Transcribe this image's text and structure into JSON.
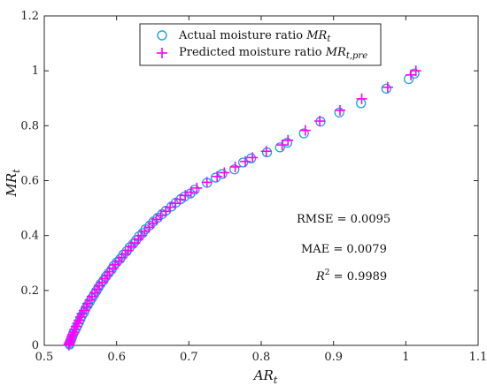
{
  "chart_data": {
    "type": "scatter",
    "xlabel": "AR_t",
    "ylabel": "MR_t",
    "xlim": [
      0.5,
      1.1
    ],
    "ylim": [
      0,
      1.2
    ],
    "xticks": [
      "0.5",
      "0.6",
      "0.7",
      "0.8",
      "0.9",
      "1",
      "1.1"
    ],
    "yticks": [
      "0",
      "0.2",
      "0.4",
      "0.6",
      "0.8",
      "1",
      "1.2"
    ],
    "xtick_values": [
      0.5,
      0.6,
      0.7,
      0.8,
      0.9,
      1.0,
      1.1
    ],
    "ytick_values": [
      0,
      0.2,
      0.4,
      0.6,
      0.8,
      1.0,
      1.2
    ],
    "grid": false,
    "legend": {
      "placement": "top-center",
      "entries": [
        {
          "label": "Actual moisture ratio MR_t",
          "marker": "circle",
          "color": "#1aa3e0"
        },
        {
          "label": "Predicted moisture ratio MR_t,pre",
          "marker": "plus",
          "color": "#ff00ff"
        }
      ]
    },
    "annotations": [
      "RMSE = 0.0095",
      "MAE = 0.0079",
      "R^2 = 0.9989"
    ],
    "series": [
      {
        "name": "Actual moisture ratio MR_t",
        "marker": "circle",
        "color": "#1aa3e0",
        "x": [
          1.012,
          1.004,
          0.973,
          0.938,
          0.908,
          0.882,
          0.859,
          0.836,
          0.826,
          0.808,
          0.786,
          0.775,
          0.763,
          0.746,
          0.737,
          0.725,
          0.708,
          0.702,
          0.694,
          0.689,
          0.682,
          0.676,
          0.668,
          0.663,
          0.657,
          0.651,
          0.646,
          0.64,
          0.636,
          0.631,
          0.627,
          0.623,
          0.618,
          0.614,
          0.609,
          0.605,
          0.6,
          0.596,
          0.593,
          0.589,
          0.585,
          0.582,
          0.578,
          0.575,
          0.572,
          0.569,
          0.566,
          0.563,
          0.56,
          0.557,
          0.555,
          0.552,
          0.55,
          0.548,
          0.546,
          0.544,
          0.542,
          0.54,
          0.539,
          0.538,
          0.537,
          0.536,
          0.535,
          0.535
        ],
        "y": [
          0.99,
          0.97,
          0.935,
          0.882,
          0.848,
          0.815,
          0.772,
          0.738,
          0.721,
          0.703,
          0.681,
          0.666,
          0.641,
          0.624,
          0.611,
          0.592,
          0.567,
          0.553,
          0.542,
          0.533,
          0.52,
          0.506,
          0.49,
          0.478,
          0.465,
          0.451,
          0.437,
          0.423,
          0.409,
          0.397,
          0.383,
          0.37,
          0.357,
          0.343,
          0.33,
          0.315,
          0.302,
          0.289,
          0.276,
          0.263,
          0.25,
          0.237,
          0.224,
          0.211,
          0.198,
          0.185,
          0.172,
          0.159,
          0.146,
          0.133,
          0.12,
          0.108,
          0.096,
          0.084,
          0.073,
          0.062,
          0.052,
          0.043,
          0.035,
          0.027,
          0.02,
          0.014,
          0.008,
          0.003
        ]
      },
      {
        "name": "Predicted moisture ratio MR_t,pre",
        "marker": "plus",
        "color": "#ff00ff",
        "x": [
          1.014,
          1.007,
          0.975,
          0.939,
          0.909,
          0.881,
          0.861,
          0.837,
          0.829,
          0.807,
          0.788,
          0.778,
          0.764,
          0.749,
          0.739,
          0.725,
          0.711,
          0.703,
          0.695,
          0.688,
          0.681,
          0.674,
          0.668,
          0.661,
          0.655,
          0.65,
          0.645,
          0.639,
          0.634,
          0.63,
          0.625,
          0.62,
          0.616,
          0.612,
          0.607,
          0.603,
          0.598,
          0.595,
          0.59,
          0.587,
          0.584,
          0.58,
          0.576,
          0.573,
          0.57,
          0.566,
          0.563,
          0.56,
          0.558,
          0.555,
          0.552,
          0.55,
          0.548,
          0.546,
          0.544,
          0.542,
          0.541,
          0.539,
          0.538,
          0.537,
          0.536,
          0.535,
          0.534,
          0.534
        ],
        "y": [
          1.0,
          0.985,
          0.94,
          0.898,
          0.856,
          0.817,
          0.783,
          0.747,
          0.73,
          0.707,
          0.684,
          0.67,
          0.65,
          0.629,
          0.615,
          0.594,
          0.573,
          0.558,
          0.546,
          0.532,
          0.517,
          0.503,
          0.488,
          0.473,
          0.459,
          0.445,
          0.43,
          0.416,
          0.4,
          0.387,
          0.373,
          0.36,
          0.346,
          0.333,
          0.32,
          0.307,
          0.294,
          0.281,
          0.268,
          0.255,
          0.243,
          0.23,
          0.217,
          0.204,
          0.191,
          0.178,
          0.165,
          0.152,
          0.139,
          0.127,
          0.115,
          0.103,
          0.091,
          0.08,
          0.069,
          0.058,
          0.048,
          0.039,
          0.031,
          0.023,
          0.016,
          0.01,
          0.005,
          0.001
        ]
      }
    ]
  }
}
